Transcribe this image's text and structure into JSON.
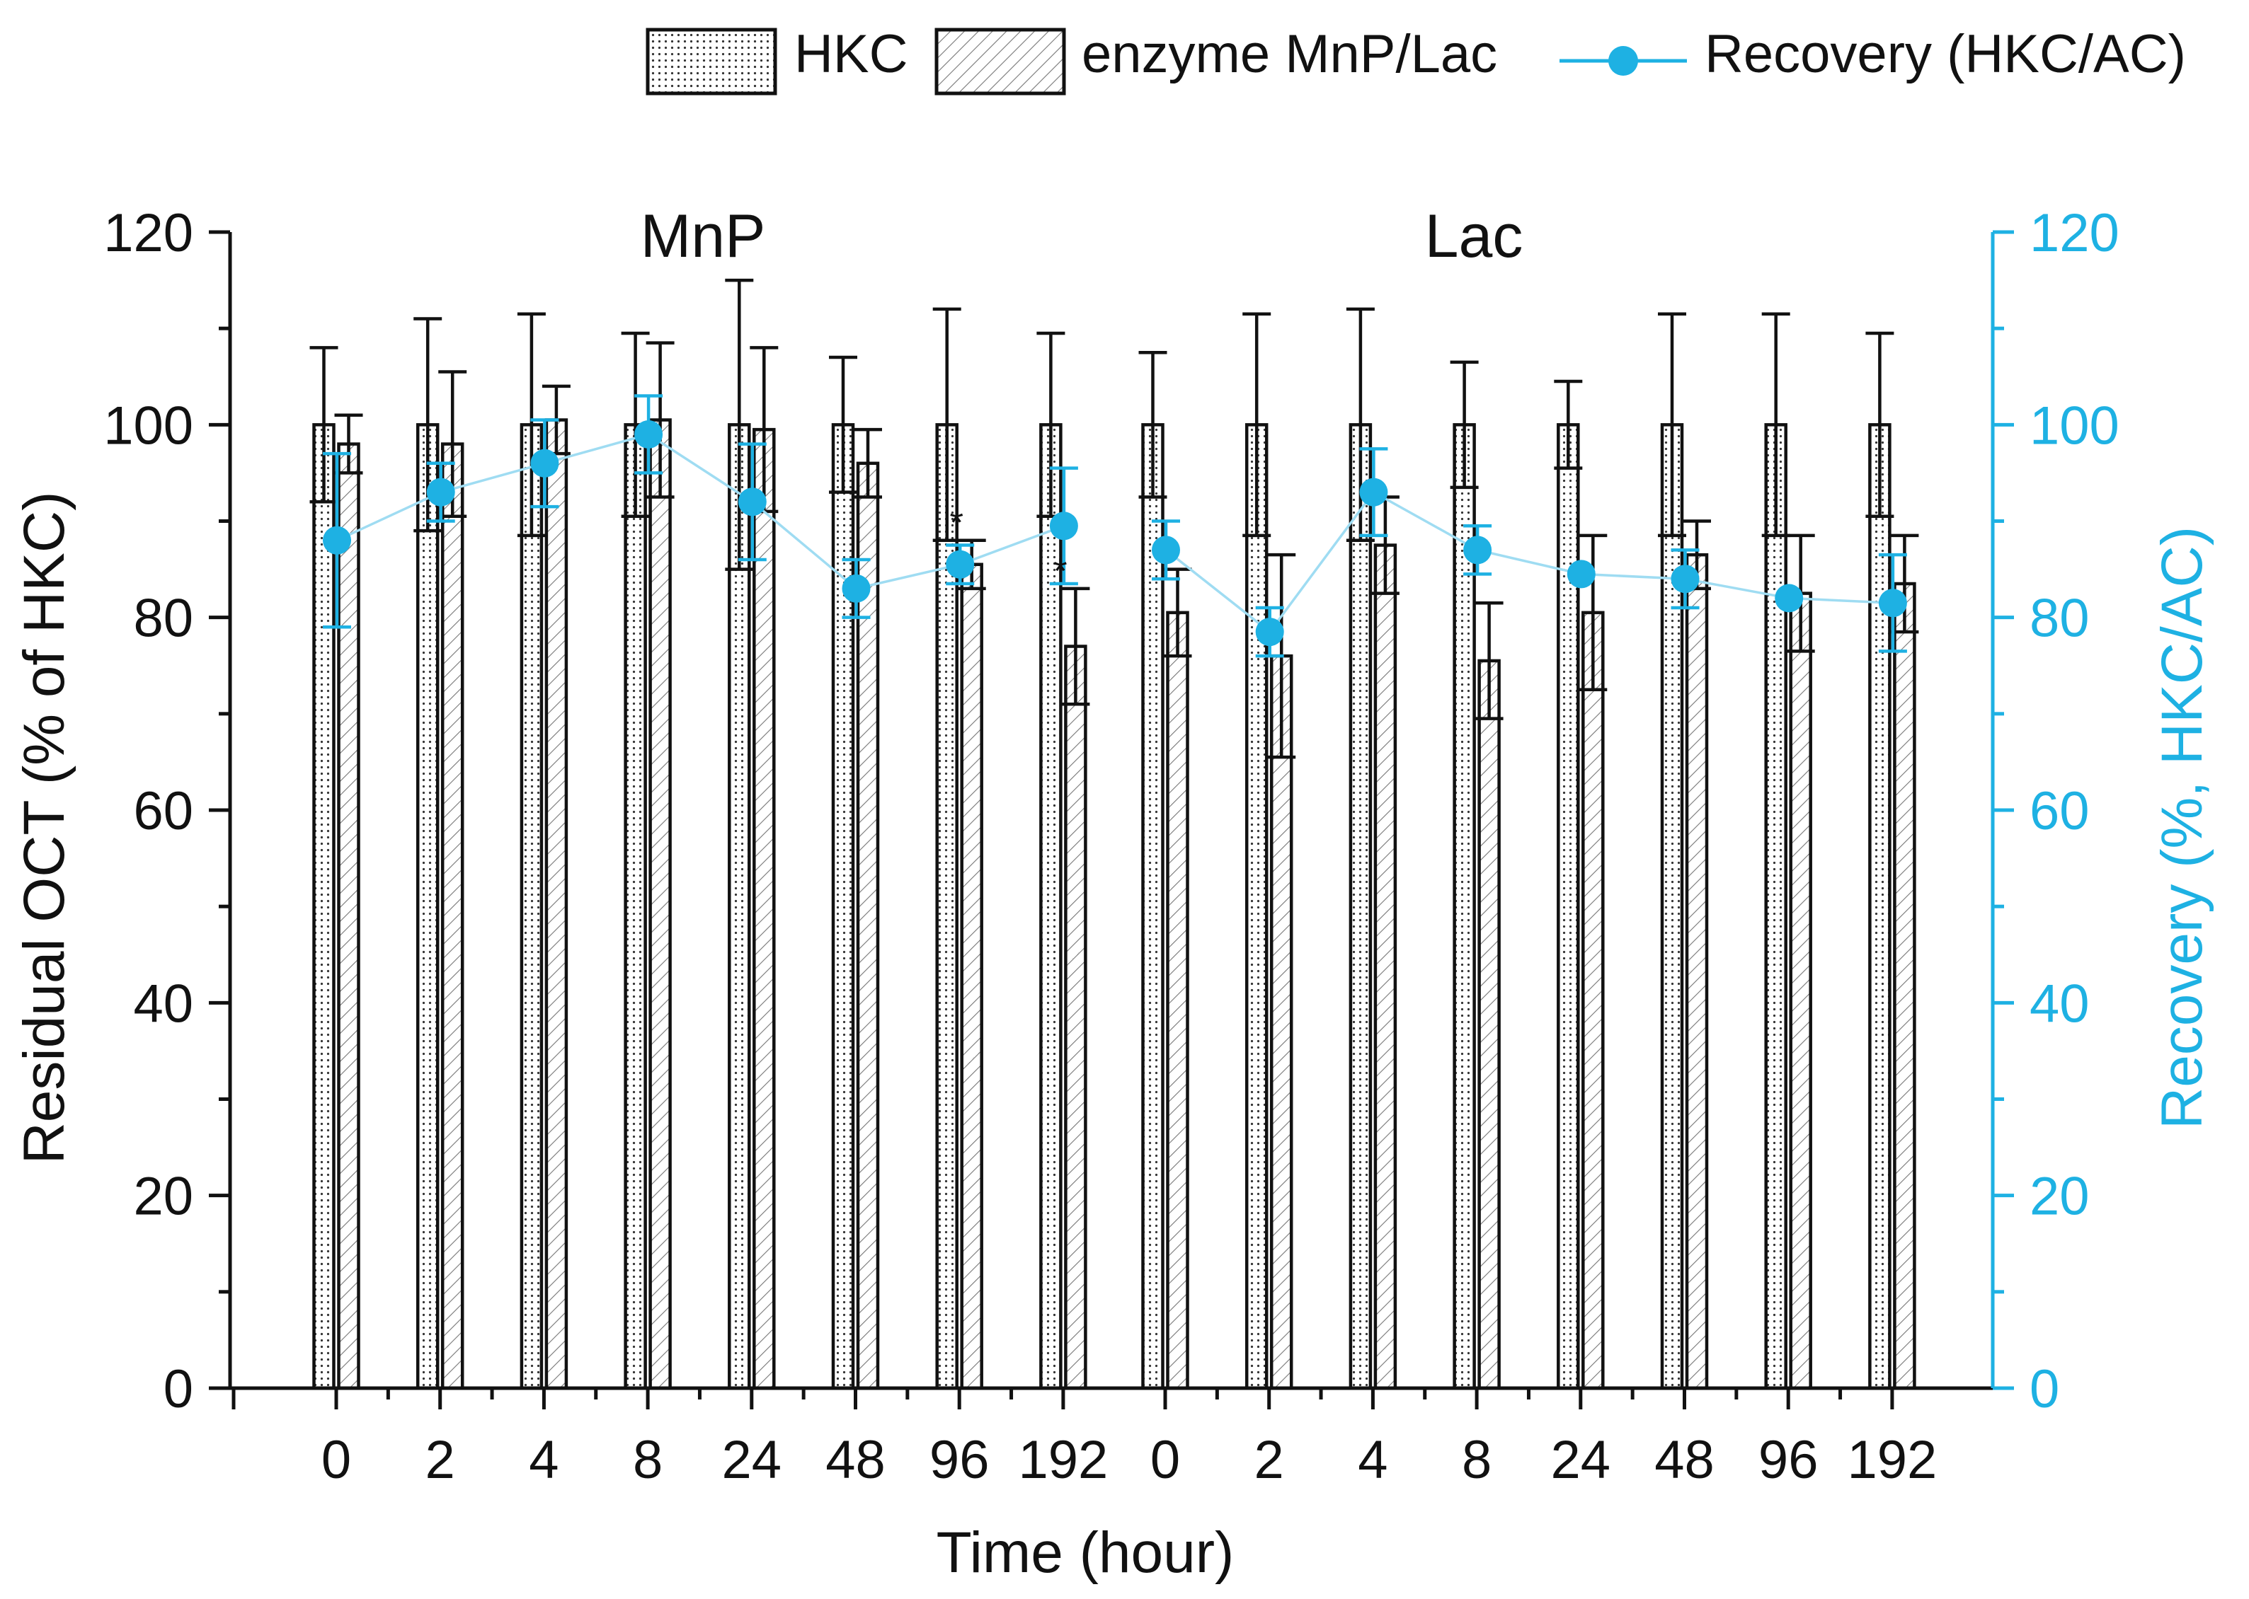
{
  "chart_data": {
    "type": "bar",
    "legend": {
      "placement": "top-right",
      "items": [
        {
          "key": "hkc",
          "label": "HKC"
        },
        {
          "key": "enzyme",
          "label": "enzyme MnP/Lac"
        },
        {
          "key": "recovery",
          "label": "Recovery (HKC/AC)"
        }
      ]
    },
    "xlabel": "Time (hour)",
    "ylabel": "Residual OCT (% of HKC)",
    "y2label": "Recovery (%, HKC/AC)",
    "ylim": [
      0,
      120
    ],
    "y2lim": [
      0,
      120
    ],
    "yticks": [
      0,
      20,
      40,
      60,
      80,
      100,
      120
    ],
    "y2ticks": [
      0,
      20,
      40,
      60,
      80,
      100,
      120
    ],
    "colors": {
      "recovery": "#1eb1e3",
      "axis": "#111111"
    },
    "groups": [
      {
        "label": "MnP",
        "categories": [
          "0",
          "2",
          "4",
          "8",
          "24",
          "48",
          "96",
          "192"
        ],
        "hkc": [
          100,
          100,
          100,
          100,
          100,
          100,
          100,
          100
        ],
        "hkc_err": [
          8,
          11,
          11.5,
          9.5,
          15,
          7,
          12,
          9.5
        ],
        "enzyme": [
          98,
          98,
          100.5,
          100.5,
          99.5,
          96,
          85.5,
          77
        ],
        "enzyme_err": [
          3,
          7.5,
          3.5,
          8,
          8.5,
          3.5,
          2.5,
          6
        ],
        "recovery": [
          88,
          93,
          96,
          99,
          92,
          83,
          85.5,
          89.5
        ],
        "recovery_err": [
          9,
          3,
          4.5,
          4,
          6,
          3,
          2,
          6
        ],
        "markers": [
          {
            "index": 6,
            "text": "*"
          },
          {
            "index": 7,
            "text": "*"
          }
        ]
      },
      {
        "label": "Lac",
        "categories": [
          "0",
          "2",
          "4",
          "8",
          "24",
          "48",
          "96",
          "192"
        ],
        "hkc": [
          100,
          100,
          100,
          100,
          100,
          100,
          100,
          100
        ],
        "hkc_err": [
          7.5,
          11.5,
          12,
          6.5,
          4.5,
          11.5,
          11.5,
          9.5
        ],
        "enzyme": [
          80.5,
          76,
          87.5,
          75.5,
          80.5,
          86.5,
          82.5,
          83.5
        ],
        "enzyme_err": [
          4.5,
          10.5,
          5,
          6,
          8,
          3.5,
          6,
          5
        ],
        "recovery": [
          87,
          78.5,
          93,
          87,
          84.5,
          84,
          82,
          81.5
        ],
        "recovery_err": [
          3,
          2.5,
          4.5,
          2.5,
          0,
          3,
          0,
          5
        ]
      }
    ]
  }
}
